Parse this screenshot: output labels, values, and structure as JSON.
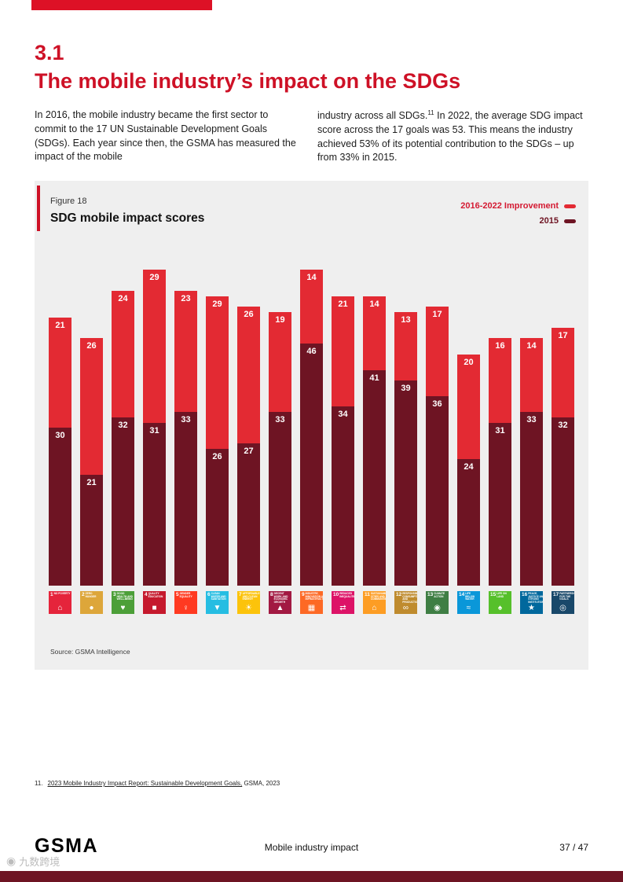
{
  "page": {
    "section_number": "3.1",
    "title": "The mobile industry’s impact on the SDGs",
    "body_col1": "In 2016, the mobile industry became the first sector to commit to the 17 UN Sustainable Development Goals (SDGs). Each year since then, the GSMA has measured the impact of the mobile",
    "body_col2_a": "industry across all SDGs.",
    "body_col2_sup": "11",
    "body_col2_b": " In 2022, the average SDG impact score across the 17 goals was 53. This means the industry achieved 53% of its potential contribution to the SDGs – up from 33% in 2015."
  },
  "figure": {
    "label": "Figure 18",
    "title": "SDG mobile impact scores",
    "source": "Source: GSMA Intelligence"
  },
  "chart_data": {
    "type": "bar",
    "stacked": true,
    "title": "SDG mobile impact scores",
    "categories": [
      "SDG 1",
      "SDG 2",
      "SDG 3",
      "SDG 4",
      "SDG 5",
      "SDG 6",
      "SDG 7",
      "SDG 8",
      "SDG 9",
      "SDG 10",
      "SDG 11",
      "SDG 12",
      "SDG 13",
      "SDG 14",
      "SDG 15",
      "SDG 16",
      "SDG 17"
    ],
    "series": [
      {
        "name": "2015",
        "color": "#6E1423",
        "values": [
          30,
          21,
          32,
          31,
          33,
          26,
          27,
          33,
          46,
          34,
          41,
          39,
          36,
          24,
          31,
          33,
          32
        ]
      },
      {
        "name": "2016-2022 Improvement",
        "color": "#E32A33",
        "values": [
          21,
          26,
          24,
          29,
          23,
          29,
          26,
          19,
          14,
          21,
          14,
          13,
          17,
          20,
          16,
          14,
          17
        ]
      }
    ],
    "ylim": [
      0,
      62
    ],
    "grid": false,
    "legend_position": "top-right",
    "xlabel": "",
    "ylabel": ""
  },
  "sdg_goals": [
    {
      "num": "1",
      "name": "No Poverty",
      "color": "#E5243B",
      "glyph": "⌂"
    },
    {
      "num": "2",
      "name": "Zero Hunger",
      "color": "#DDA63A",
      "glyph": "●"
    },
    {
      "num": "3",
      "name": "Good Health and Well-Being",
      "color": "#4C9F38",
      "glyph": "♥"
    },
    {
      "num": "4",
      "name": "Quality Education",
      "color": "#C5192D",
      "glyph": "■"
    },
    {
      "num": "5",
      "name": "Gender Equality",
      "color": "#FF3A21",
      "glyph": "♀"
    },
    {
      "num": "6",
      "name": "Clean Water and Sanitation",
      "color": "#26BDE2",
      "glyph": "▼"
    },
    {
      "num": "7",
      "name": "Affordable and Clean Energy",
      "color": "#FCC30B",
      "glyph": "☀"
    },
    {
      "num": "8",
      "name": "Decent Work and Economic Growth",
      "color": "#A21942",
      "glyph": "▲"
    },
    {
      "num": "9",
      "name": "Industry, Innovation and Infrastructure",
      "color": "#FD6925",
      "glyph": "▦"
    },
    {
      "num": "10",
      "name": "Reduced Inequalities",
      "color": "#DD1367",
      "glyph": "⇄"
    },
    {
      "num": "11",
      "name": "Sustainable Cities and Communities",
      "color": "#FD9D24",
      "glyph": "⌂"
    },
    {
      "num": "12",
      "name": "Responsible Consumption and Production",
      "color": "#BF8B2E",
      "glyph": "∞"
    },
    {
      "num": "13",
      "name": "Climate Action",
      "color": "#3F7E44",
      "glyph": "◉"
    },
    {
      "num": "14",
      "name": "Life Below Water",
      "color": "#0A97D9",
      "glyph": "≈"
    },
    {
      "num": "15",
      "name": "Life on Land",
      "color": "#56C02B",
      "glyph": "♠"
    },
    {
      "num": "16",
      "name": "Peace, Justice and Strong Institutions",
      "color": "#00689D",
      "glyph": "★"
    },
    {
      "num": "17",
      "name": "Partnerships for the Goals",
      "color": "#19486A",
      "glyph": "◎"
    }
  ],
  "footnote": {
    "number": "11.",
    "link_text": "2023 Mobile Industry Impact Report: Sustainable Development Goals,",
    "rest": " GSMA, 2023"
  },
  "footer": {
    "logo": "GSMA",
    "center": "Mobile industry impact",
    "page": "37 / 47"
  },
  "watermark": {
    "text": "九数跨境"
  }
}
